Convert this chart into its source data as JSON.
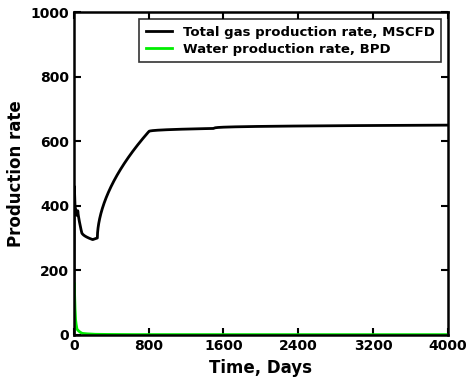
{
  "title": "",
  "xlabel": "Time, Days",
  "ylabel": "Production rate",
  "xlim": [
    0,
    4000
  ],
  "ylim": [
    0,
    1000
  ],
  "xticks": [
    0,
    800,
    1600,
    2400,
    3200,
    4000
  ],
  "yticks": [
    0,
    200,
    400,
    600,
    800,
    1000
  ],
  "gas_color": "#000000",
  "water_color": "#00ee00",
  "gas_label": "Total gas production rate, MSCFD",
  "water_label": "Water production rate, BPD",
  "linewidth": 2.0,
  "legend_fontsize": 9.5,
  "axis_fontsize": 12,
  "tick_fontsize": 10,
  "figsize": [
    4.74,
    3.84
  ],
  "dpi": 100
}
